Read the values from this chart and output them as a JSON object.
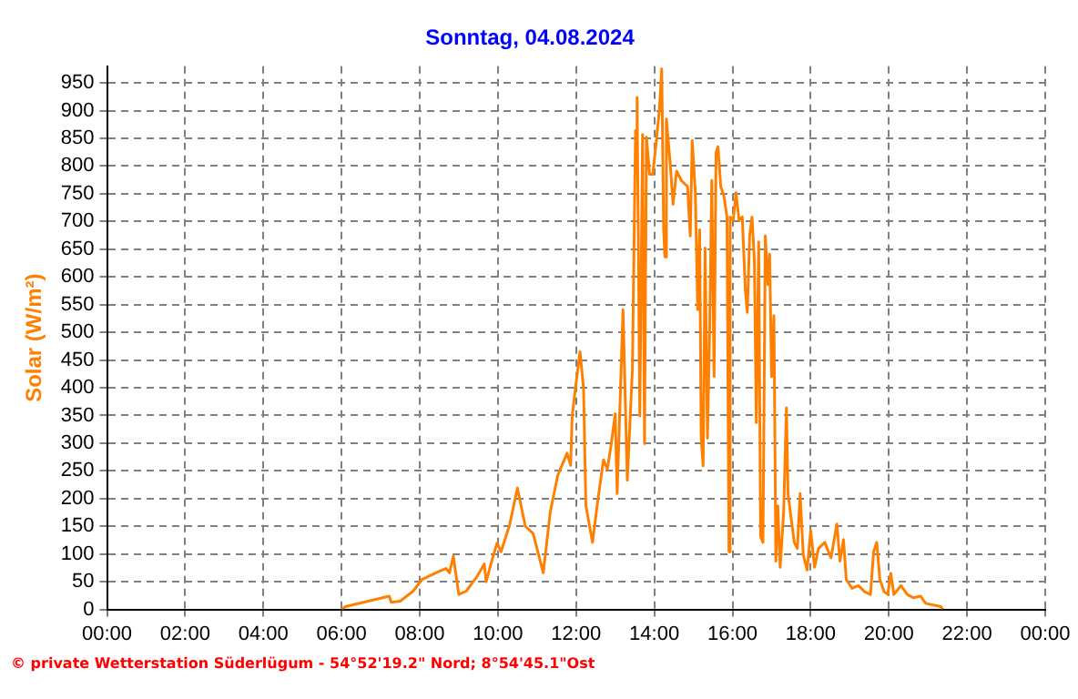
{
  "chart_data": {
    "type": "line",
    "title": "Sonntag, 04.08.2024",
    "ylabel": "Solar (W/m²)",
    "annotations": [
      "© private Wetterstation Süderlügum - 54°52'19.2\" Nord; 8°54'45.1\"Ost"
    ],
    "xlim": [
      0,
      24
    ],
    "xticks": [
      {
        "value": 0,
        "label": "00:00"
      },
      {
        "value": 2,
        "label": "02:00"
      },
      {
        "value": 4,
        "label": "04:00"
      },
      {
        "value": 6,
        "label": "06:00"
      },
      {
        "value": 8,
        "label": "08:00"
      },
      {
        "value": 10,
        "label": "10:00"
      },
      {
        "value": 12,
        "label": "12:00"
      },
      {
        "value": 14,
        "label": "14:00"
      },
      {
        "value": 16,
        "label": "16:00"
      },
      {
        "value": 18,
        "label": "18:00"
      },
      {
        "value": 20,
        "label": "20:00"
      },
      {
        "value": 22,
        "label": "22:00"
      },
      {
        "value": 24,
        "label": "00:00"
      }
    ],
    "ylim": [
      0,
      980
    ],
    "yticks": [
      0,
      50,
      100,
      150,
      200,
      250,
      300,
      350,
      400,
      450,
      500,
      550,
      600,
      650,
      700,
      750,
      800,
      850,
      900,
      950
    ],
    "grid": true,
    "legend": false,
    "marker": "none",
    "line_style": "solid",
    "series": [
      {
        "color": "#ff8000",
        "x": [
          6.0,
          6.1,
          6.56,
          7.22,
          7.27,
          7.5,
          7.83,
          8.06,
          8.44,
          8.67,
          8.76,
          8.86,
          9.0,
          9.19,
          9.47,
          9.65,
          9.7,
          9.84,
          9.98,
          10.08,
          10.3,
          10.5,
          10.7,
          10.9,
          11.16,
          11.34,
          11.53,
          11.77,
          11.86,
          11.9,
          12.0,
          12.1,
          12.19,
          12.25,
          12.42,
          12.56,
          12.7,
          12.8,
          12.9,
          13.0,
          13.05,
          13.2,
          13.31,
          13.44,
          13.52,
          13.56,
          13.63,
          13.7,
          13.75,
          13.8,
          13.88,
          13.96,
          14.03,
          14.13,
          14.19,
          14.24,
          14.27,
          14.31,
          14.41,
          14.48,
          14.57,
          14.69,
          14.85,
          14.92,
          14.97,
          15.05,
          15.11,
          15.16,
          15.2,
          15.25,
          15.3,
          15.36,
          15.42,
          15.47,
          15.53,
          15.58,
          15.63,
          15.7,
          15.78,
          15.86,
          15.91,
          15.94,
          16.02,
          16.09,
          16.17,
          16.25,
          16.33,
          16.38,
          16.44,
          16.5,
          16.56,
          16.61,
          16.67,
          16.72,
          16.78,
          16.84,
          16.91,
          16.95,
          17.0,
          17.06,
          17.11,
          17.16,
          17.22,
          17.31,
          17.38,
          17.42,
          17.5,
          17.58,
          17.66,
          17.73,
          17.81,
          17.91,
          18.0,
          18.1,
          18.2,
          18.36,
          18.52,
          18.67,
          18.75,
          18.84,
          18.91,
          19.06,
          19.22,
          19.38,
          19.53,
          19.61,
          19.69,
          19.77,
          19.88,
          19.97,
          20.05,
          20.13,
          20.31,
          20.47,
          20.63,
          20.81,
          20.94,
          21.33,
          21.38
        ],
        "values": [
          0,
          5,
          13,
          24,
          13,
          15,
          33,
          54,
          67,
          74,
          66,
          96,
          27,
          33,
          60,
          82,
          50,
          87,
          120,
          104,
          153,
          219,
          150,
          137,
          66,
          176,
          242,
          282,
          260,
          349,
          409,
          465,
          399,
          187,
          121,
          199,
          270,
          253,
          299,
          353,
          209,
          541,
          233,
          432,
          864,
          924,
          349,
          857,
          299,
          852,
          785,
          785,
          830,
          901,
          975,
          685,
          636,
          885,
          802,
          731,
          791,
          774,
          763,
          674,
          846,
          752,
          541,
          685,
          309,
          259,
          652,
          309,
          519,
          774,
          420,
          824,
          835,
          763,
          746,
          708,
          104,
          708,
          702,
          752,
          702,
          708,
          575,
          536,
          674,
          708,
          630,
          337,
          663,
          132,
          121,
          674,
          586,
          641,
          420,
          530,
          87,
          187,
          76,
          176,
          364,
          209,
          165,
          121,
          110,
          209,
          99,
          71,
          143,
          76,
          110,
          121,
          93,
          154,
          87,
          126,
          54,
          38,
          43,
          32,
          27,
          104,
          121,
          54,
          32,
          27,
          65,
          27,
          43,
          27,
          21,
          24,
          11,
          5,
          0
        ]
      }
    ]
  }
}
